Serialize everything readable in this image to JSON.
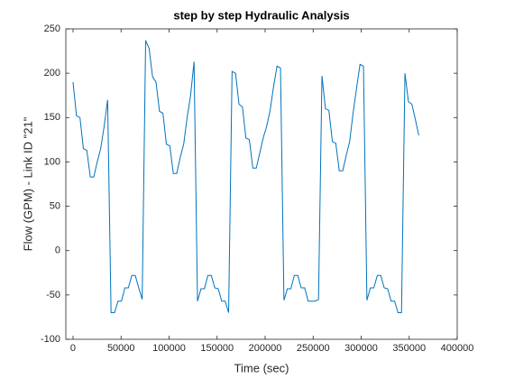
{
  "chart_data": {
    "type": "line",
    "title": "step by step Hydraulic Analysis",
    "x_label": "Time (sec)",
    "y_label": "Flow (GPM) - Link ID \"21\"",
    "color": "#0072bd",
    "x": [
      0,
      3600,
      7200,
      10800,
      14400,
      18000,
      21600,
      25200,
      28800,
      32400,
      36000,
      39600,
      43200,
      46800,
      50400,
      54000,
      57600,
      61200,
      64800,
      68400,
      72000,
      75600,
      79200,
      82800,
      86400,
      90000,
      93600,
      97200,
      100800,
      104400,
      108000,
      111600,
      115200,
      118800,
      122400,
      126000,
      129600,
      133200,
      136800,
      140400,
      144000,
      147600,
      151200,
      154800,
      158400,
      162000,
      165600,
      169200,
      172800,
      176400,
      180000,
      183600,
      187200,
      190800,
      194400,
      198000,
      201600,
      205200,
      208800,
      212400,
      216000,
      219600,
      223200,
      226800,
      230400,
      234000,
      237600,
      241200,
      244800,
      248400,
      252000,
      255600,
      259200,
      262800,
      266400,
      270000,
      273600,
      277200,
      280800,
      284400,
      288000,
      291600,
      295200,
      298800,
      302400,
      306000,
      309600,
      313200,
      316800,
      320400,
      324000,
      327600,
      331200,
      334800,
      338400,
      342000,
      345600,
      349200,
      352800,
      356400,
      360000
    ],
    "values": [
      190,
      152,
      150,
      115,
      113,
      83,
      83,
      100,
      115,
      140,
      170,
      -70,
      -70,
      -57,
      -57,
      -42,
      -42,
      -28,
      -28,
      -42,
      -55,
      237,
      228,
      196,
      190,
      157,
      155,
      120,
      118,
      87,
      87,
      105,
      120,
      150,
      175,
      213,
      -57,
      -43,
      -43,
      -28,
      -28,
      -42,
      -43,
      -57,
      -57,
      -70,
      202,
      200,
      165,
      162,
      127,
      125,
      93,
      93,
      110,
      127,
      140,
      158,
      185,
      208,
      206,
      -56,
      -43,
      -43,
      -28,
      -28,
      -42,
      -42,
      -57,
      -57,
      -57,
      -55,
      197,
      160,
      158,
      123,
      121,
      90,
      90,
      107,
      123,
      155,
      183,
      210,
      208,
      -56,
      -42,
      -42,
      -28,
      -28,
      -42,
      -43,
      -57,
      -57,
      -70,
      -70,
      200,
      168,
      165,
      148,
      130
    ],
    "xlim": [
      -7500,
      400000
    ],
    "xticks": [
      0,
      50000,
      100000,
      150000,
      200000,
      250000,
      300000,
      350000,
      400000
    ],
    "ylim": [
      -100,
      250
    ],
    "yticks": [
      -100,
      -50,
      0,
      50,
      100,
      150,
      200,
      250
    ]
  }
}
